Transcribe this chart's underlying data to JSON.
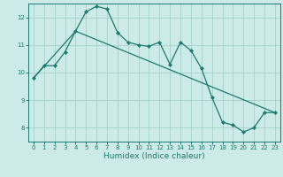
{
  "title": "",
  "xlabel": "Humidex (Indice chaleur)",
  "bg_color": "#cceae7",
  "grid_color": "#aad4d0",
  "line_color": "#1a7a6e",
  "xlim": [
    -0.5,
    23.5
  ],
  "ylim": [
    7.5,
    12.5
  ],
  "yticks": [
    8,
    9,
    10,
    11,
    12
  ],
  "xticks": [
    0,
    1,
    2,
    3,
    4,
    5,
    6,
    7,
    8,
    9,
    10,
    11,
    12,
    13,
    14,
    15,
    16,
    17,
    18,
    19,
    20,
    21,
    22,
    23
  ],
  "line1_x": [
    0,
    1,
    2,
    3,
    4,
    5,
    6,
    7,
    8,
    9,
    10,
    11,
    12,
    13,
    14,
    15,
    16,
    17,
    18,
    19,
    20,
    21,
    22,
    23
  ],
  "line1_y": [
    9.8,
    10.25,
    10.25,
    10.75,
    11.5,
    12.2,
    12.4,
    12.3,
    11.45,
    11.1,
    11.0,
    10.95,
    11.1,
    10.3,
    11.1,
    10.8,
    10.15,
    9.1,
    8.2,
    8.1,
    7.85,
    8.0,
    8.55,
    8.55
  ],
  "line2_x": [
    0,
    4,
    23
  ],
  "line2_y": [
    9.8,
    11.5,
    8.55
  ]
}
